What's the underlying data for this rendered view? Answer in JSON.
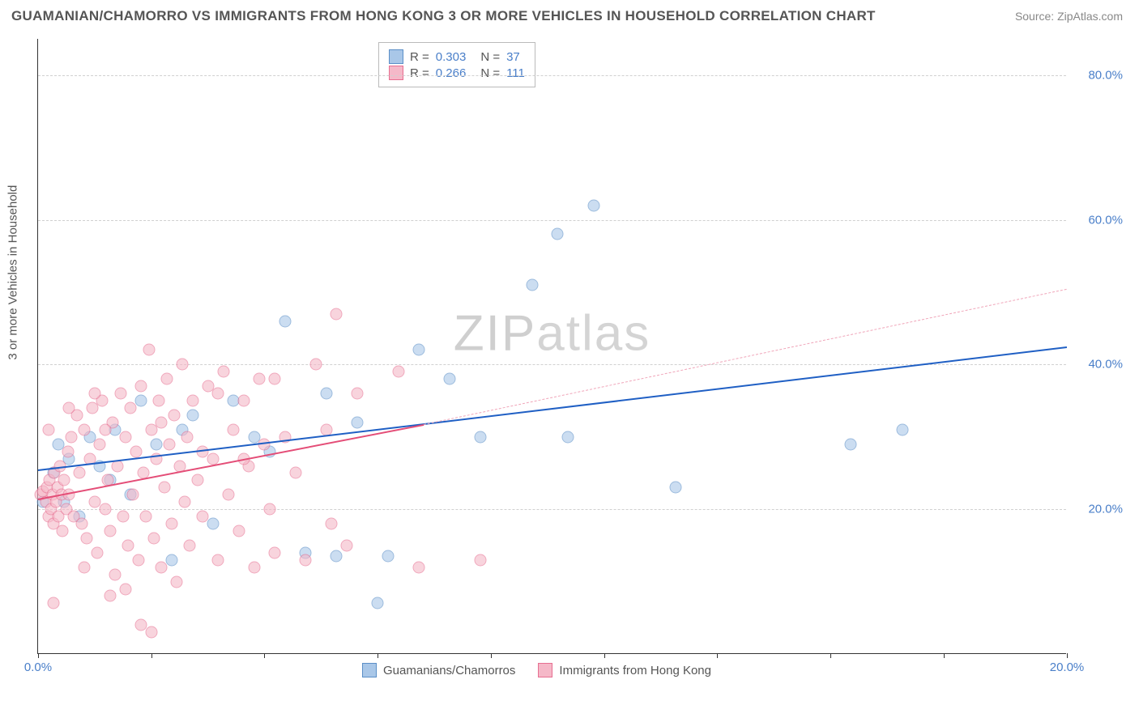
{
  "header": {
    "title": "GUAMANIAN/CHAMORRO VS IMMIGRANTS FROM HONG KONG 3 OR MORE VEHICLES IN HOUSEHOLD CORRELATION CHART",
    "source": "Source: ZipAtlas.com"
  },
  "chart": {
    "type": "scatter",
    "watermark": "ZIPatlas",
    "y_axis_label": "3 or more Vehicles in Household",
    "background_color": "#ffffff",
    "grid_color": "#d0d0d0",
    "axis_color": "#333333",
    "tick_label_color": "#4a7fc9",
    "x_range": [
      0,
      20
    ],
    "y_range": [
      0,
      85
    ],
    "x_ticks": [
      0,
      2.2,
      4.4,
      6.6,
      8.8,
      11.0,
      13.2,
      15.4,
      17.6,
      20.0
    ],
    "x_tick_labels": {
      "0": "0.0%",
      "20": "20.0%"
    },
    "y_ticks": [
      20,
      40,
      60,
      80
    ],
    "y_tick_labels": {
      "20": "20.0%",
      "40": "40.0%",
      "60": "60.0%",
      "80": "80.0%"
    },
    "point_radius": 7.5,
    "point_opacity": 0.6,
    "series": [
      {
        "name": "Guamanians/Chamorros",
        "color_fill": "#a9c7e8",
        "color_stroke": "#5b8fc7",
        "r": "0.303",
        "n": "37",
        "trend": {
          "x1": 0,
          "y1": 25.5,
          "x2": 20,
          "y2": 42.5,
          "color": "#1f5fc4",
          "width": 2,
          "dash": null
        },
        "points": [
          [
            0.1,
            21
          ],
          [
            0.3,
            25
          ],
          [
            0.4,
            29
          ],
          [
            0.5,
            21
          ],
          [
            0.6,
            27
          ],
          [
            0.8,
            19
          ],
          [
            1.0,
            30
          ],
          [
            1.2,
            26
          ],
          [
            1.4,
            24
          ],
          [
            1.5,
            31
          ],
          [
            1.8,
            22
          ],
          [
            2.0,
            35
          ],
          [
            2.3,
            29
          ],
          [
            2.6,
            13
          ],
          [
            2.8,
            31
          ],
          [
            3.0,
            33
          ],
          [
            3.4,
            18
          ],
          [
            3.8,
            35
          ],
          [
            4.2,
            30
          ],
          [
            4.8,
            46
          ],
          [
            4.5,
            28
          ],
          [
            5.2,
            14
          ],
          [
            5.6,
            36
          ],
          [
            5.8,
            13.5
          ],
          [
            6.2,
            32
          ],
          [
            6.6,
            7
          ],
          [
            6.8,
            13.5
          ],
          [
            7.4,
            42
          ],
          [
            8.0,
            38
          ],
          [
            8.6,
            30
          ],
          [
            9.6,
            51
          ],
          [
            10.1,
            58
          ],
          [
            10.3,
            30
          ],
          [
            10.8,
            62
          ],
          [
            12.4,
            23
          ],
          [
            15.8,
            29
          ],
          [
            16.8,
            31
          ]
        ]
      },
      {
        "name": "Immigrants from Hong Kong",
        "color_fill": "#f5b8c8",
        "color_stroke": "#e76f91",
        "r": "0.266",
        "n": "111",
        "trend_solid": {
          "x1": 0,
          "y1": 21.5,
          "x2": 7.5,
          "y2": 31.8,
          "color": "#e44d77",
          "width": 2
        },
        "trend_dash": {
          "x1": 7.5,
          "y1": 31.8,
          "x2": 20,
          "y2": 50.5,
          "color": "#f0a5b9",
          "width": 1.5
        },
        "points": [
          [
            0.05,
            22
          ],
          [
            0.1,
            22.5
          ],
          [
            0.15,
            21
          ],
          [
            0.18,
            23
          ],
          [
            0.2,
            19
          ],
          [
            0.22,
            24
          ],
          [
            0.25,
            20
          ],
          [
            0.28,
            22
          ],
          [
            0.3,
            18
          ],
          [
            0.32,
            25
          ],
          [
            0.35,
            21
          ],
          [
            0.38,
            23
          ],
          [
            0.4,
            19
          ],
          [
            0.42,
            26
          ],
          [
            0.45,
            22
          ],
          [
            0.48,
            17
          ],
          [
            0.5,
            24
          ],
          [
            0.55,
            20
          ],
          [
            0.58,
            28
          ],
          [
            0.6,
            22
          ],
          [
            0.65,
            30
          ],
          [
            0.7,
            19
          ],
          [
            0.75,
            33
          ],
          [
            0.8,
            25
          ],
          [
            0.85,
            18
          ],
          [
            0.9,
            31
          ],
          [
            0.95,
            16
          ],
          [
            1.0,
            27
          ],
          [
            1.05,
            34
          ],
          [
            1.1,
            21
          ],
          [
            1.15,
            14
          ],
          [
            1.2,
            29
          ],
          [
            1.25,
            35
          ],
          [
            1.3,
            20
          ],
          [
            1.35,
            24
          ],
          [
            1.4,
            17
          ],
          [
            1.45,
            32
          ],
          [
            1.5,
            11
          ],
          [
            1.55,
            26
          ],
          [
            1.6,
            36
          ],
          [
            1.65,
            19
          ],
          [
            1.7,
            30
          ],
          [
            1.75,
            15
          ],
          [
            1.8,
            34
          ],
          [
            1.85,
            22
          ],
          [
            1.9,
            28
          ],
          [
            1.95,
            13
          ],
          [
            2.0,
            37
          ],
          [
            2.05,
            25
          ],
          [
            2.1,
            19
          ],
          [
            2.15,
            42
          ],
          [
            2.2,
            31
          ],
          [
            2.25,
            16
          ],
          [
            2.3,
            27
          ],
          [
            2.35,
            35
          ],
          [
            2.4,
            12
          ],
          [
            2.45,
            23
          ],
          [
            2.5,
            38
          ],
          [
            2.55,
            29
          ],
          [
            2.6,
            18
          ],
          [
            2.65,
            33
          ],
          [
            2.7,
            10
          ],
          [
            2.75,
            26
          ],
          [
            2.8,
            40
          ],
          [
            2.85,
            21
          ],
          [
            2.9,
            30
          ],
          [
            2.95,
            15
          ],
          [
            3.0,
            35
          ],
          [
            3.1,
            24
          ],
          [
            3.2,
            19
          ],
          [
            3.3,
            37
          ],
          [
            3.4,
            27
          ],
          [
            3.5,
            13
          ],
          [
            3.6,
            39
          ],
          [
            3.7,
            22
          ],
          [
            3.8,
            31
          ],
          [
            3.9,
            17
          ],
          [
            4.0,
            35
          ],
          [
            4.1,
            26
          ],
          [
            4.2,
            12
          ],
          [
            4.3,
            38
          ],
          [
            4.4,
            29
          ],
          [
            4.5,
            20
          ],
          [
            4.6,
            14
          ],
          [
            4.0,
            27
          ],
          [
            3.5,
            36
          ],
          [
            5.0,
            25
          ],
          [
            5.2,
            13
          ],
          [
            5.4,
            40
          ],
          [
            5.6,
            31
          ],
          [
            5.8,
            47
          ],
          [
            5.7,
            18
          ],
          [
            6.0,
            15
          ],
          [
            6.2,
            36
          ],
          [
            0.3,
            7
          ],
          [
            1.4,
            8
          ],
          [
            2.0,
            4
          ],
          [
            2.2,
            3
          ],
          [
            0.9,
            12
          ],
          [
            1.7,
            9
          ],
          [
            2.4,
            32
          ],
          [
            4.6,
            38
          ],
          [
            3.2,
            28
          ],
          [
            4.8,
            30
          ],
          [
            0.2,
            31
          ],
          [
            0.6,
            34
          ],
          [
            1.1,
            36
          ],
          [
            7.0,
            39
          ],
          [
            7.4,
            12
          ],
          [
            8.6,
            13
          ],
          [
            1.3,
            31
          ]
        ]
      }
    ],
    "legend_bottom": [
      {
        "label": "Guamanians/Chamorros",
        "fill": "#a9c7e8",
        "stroke": "#5b8fc7"
      },
      {
        "label": "Immigrants from Hong Kong",
        "fill": "#f5b8c8",
        "stroke": "#e76f91"
      }
    ]
  }
}
